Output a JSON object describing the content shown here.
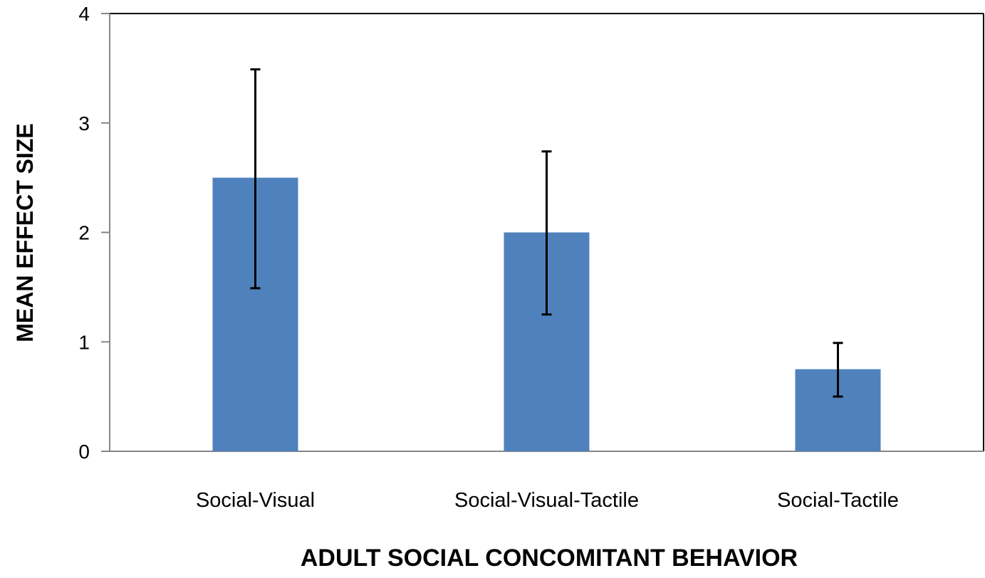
{
  "chart_data": {
    "type": "bar",
    "title": "",
    "xlabel": "ADULT SOCIAL CONCOMITANT BEHAVIOR",
    "ylabel": "MEAN EFFECT SIZE",
    "categories": [
      "Social-Visual",
      "Social-Visual-Tactile",
      "Social-Tactile"
    ],
    "values": [
      2.5,
      2.0,
      0.75
    ],
    "error_low": [
      1.49,
      1.25,
      0.5
    ],
    "error_high": [
      3.49,
      2.74,
      0.99
    ],
    "ylim": [
      0,
      4
    ],
    "yticks": [
      0,
      1,
      2,
      3,
      4
    ],
    "grid": false,
    "legend": "none",
    "colors": {
      "bar": "#4f81bd",
      "axis": "#868686",
      "frame": "#000000",
      "error_bar": "#000000",
      "text": "#000000"
    }
  }
}
